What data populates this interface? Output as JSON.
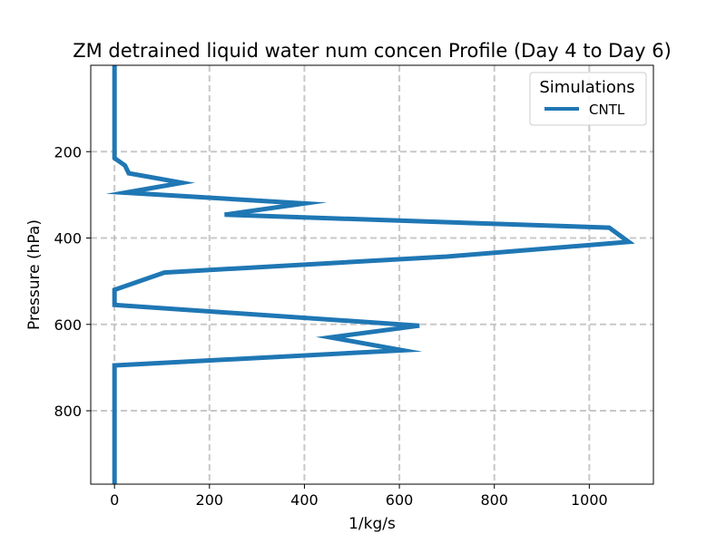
{
  "chart_data": {
    "type": "line",
    "title": "ZM detrained liquid water num concen Profile (Day 4 to Day 6)",
    "xlabel": "1/kg/s",
    "ylabel": "Pressure (hPa)",
    "xlim": [
      -50,
      1135
    ],
    "ylim": [
      970,
      0
    ],
    "y_inverted": true,
    "grid": true,
    "grid_style": "dashed",
    "x_ticks": [
      0,
      200,
      400,
      600,
      800,
      1000
    ],
    "y_ticks": [
      200,
      400,
      600,
      800
    ],
    "legend": {
      "title": "Simulations",
      "location": "upper right"
    },
    "series": [
      {
        "name": "CNTL",
        "color": "#1f77b4",
        "points": [
          {
            "x": 0,
            "y": 0
          },
          {
            "x": 0,
            "y": 100
          },
          {
            "x": 0,
            "y": 150
          },
          {
            "x": 0,
            "y": 215
          },
          {
            "x": 22,
            "y": 232
          },
          {
            "x": 30,
            "y": 250
          },
          {
            "x": 142,
            "y": 272
          },
          {
            "x": 23,
            "y": 295
          },
          {
            "x": 400,
            "y": 320
          },
          {
            "x": 232,
            "y": 346
          },
          {
            "x": 1042,
            "y": 376
          },
          {
            "x": 1083,
            "y": 409
          },
          {
            "x": 700,
            "y": 443
          },
          {
            "x": 105,
            "y": 480
          },
          {
            "x": 0,
            "y": 520
          },
          {
            "x": 0,
            "y": 555
          },
          {
            "x": 642,
            "y": 603
          },
          {
            "x": 455,
            "y": 630
          },
          {
            "x": 607,
            "y": 660
          },
          {
            "x": 0,
            "y": 695
          },
          {
            "x": 0,
            "y": 750
          },
          {
            "x": 0,
            "y": 850
          },
          {
            "x": 0,
            "y": 970
          }
        ]
      }
    ]
  }
}
